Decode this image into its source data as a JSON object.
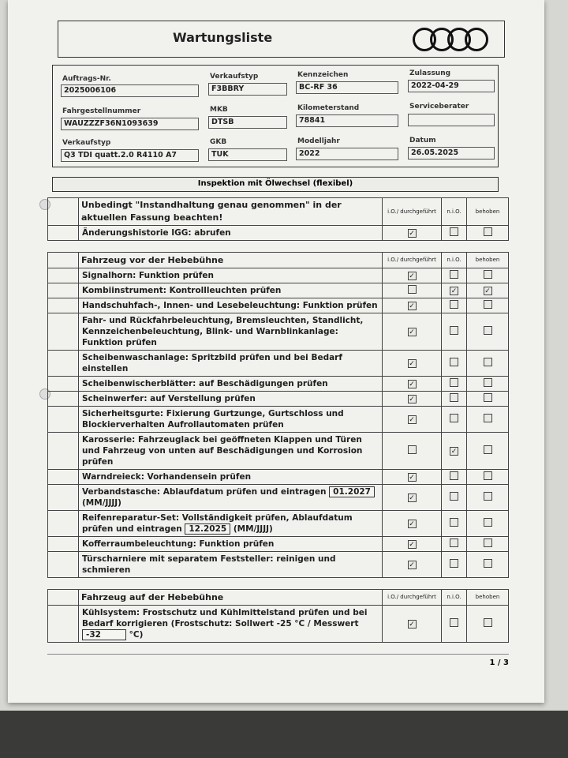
{
  "header": {
    "title": "Wartungsliste",
    "logo": "four-rings-logo"
  },
  "info": {
    "auftrag_label": "Auftrags-Nr.",
    "auftrag": "2025006106",
    "verkaufstyp_code_label": "Verkaufstyp",
    "verkaufstyp_code": "F3BBRY",
    "kennzeichen_label": "Kennzeichen",
    "kennzeichen": "BC-RF 36",
    "zulassung_label": "Zulassung",
    "zulassung": "2022-04-29",
    "fahrgestell_label": "Fahrgestellnummer",
    "fahrgestell": "WAUZZZF36N1093639",
    "mkb_label": "MKB",
    "mkb": "DTSB",
    "km_label": "Kilometerstand",
    "km": "78841",
    "berater_label": "Serviceberater",
    "berater": "",
    "verkaufstyp_label": "Verkaufstyp",
    "verkaufstyp": "Q3 TDI quatt.2.0 R4110 A7",
    "gkb_label": "GKB",
    "gkb": "TUK",
    "modelljahr_label": "Modelljahr",
    "modelljahr": "2022",
    "datum_label": "Datum",
    "datum": "26.05.2025"
  },
  "inspection_title": "Inspektion mit Ölwechsel (flexibel)",
  "columns": {
    "io": "i.O./ durchgeführt",
    "nio": "n.i.O.",
    "behoben": "behoben"
  },
  "sections": [
    {
      "title": "Unbedingt \"Instandhaltung genau genommen\" in der aktuellen Fassung beachten!",
      "rows": [
        {
          "text": "Änderungshistorie IGG: abrufen",
          "checks": [
            true,
            false,
            false
          ]
        }
      ]
    },
    {
      "title": "Fahrzeug vor der Hebebühne",
      "rows": [
        {
          "text": "Signalhorn: Funktion prüfen",
          "checks": [
            true,
            false,
            false
          ]
        },
        {
          "text": "Kombiinstrument: Kontrollleuchten prüfen",
          "checks": [
            false,
            true,
            true
          ]
        },
        {
          "text": "Handschuhfach-, Innen- und Lesebeleuchtung: Funktion prüfen",
          "checks": [
            true,
            false,
            false
          ]
        },
        {
          "text": "Fahr- und Rückfahrbeleuchtung, Bremsleuchten, Standlicht, Kennzeichenbeleuchtung, Blink- und Warnblinkanlage: Funktion prüfen",
          "checks": [
            true,
            false,
            false
          ]
        },
        {
          "text": "Scheibenwaschanlage: Spritzbild prüfen und bei Bedarf einstellen",
          "checks": [
            true,
            false,
            false
          ]
        },
        {
          "text": "Scheibenwischerblätter: auf Beschädigungen prüfen",
          "checks": [
            true,
            false,
            false
          ]
        },
        {
          "text": "Scheinwerfer: auf Verstellung prüfen",
          "checks": [
            true,
            false,
            false
          ]
        },
        {
          "text": "Sicherheitsgurte: Fixierung Gurtzunge, Gurtschloss und Blockierverhalten Aufrollautomaten prüfen",
          "checks": [
            true,
            false,
            false
          ]
        },
        {
          "text": "Karosserie: Fahrzeuglack bei geöffneten Klappen und Türen und Fahrzeug von unten auf Beschädigungen und Korrosion prüfen",
          "checks": [
            false,
            true,
            false
          ]
        },
        {
          "text": "Warndreieck: Vorhandensein prüfen",
          "checks": [
            true,
            false,
            false
          ]
        },
        {
          "text": "Verbandstasche: Ablaufdatum prüfen und eintragen",
          "value": "01.2027",
          "suffix": "(MM/JJJJ)",
          "checks": [
            true,
            false,
            false
          ]
        },
        {
          "text": "Reifenreparatur-Set: Vollständigkeit prüfen, Ablaufdatum prüfen und eintragen",
          "value": "12.2025",
          "suffix": "(MM/JJJJ)",
          "checks": [
            true,
            false,
            false
          ]
        },
        {
          "text": "Kofferraumbeleuchtung: Funktion prüfen",
          "checks": [
            true,
            false,
            false
          ]
        },
        {
          "text": "Türscharniere mit separatem Feststeller: reinigen und schmieren",
          "checks": [
            true,
            false,
            false
          ]
        }
      ]
    },
    {
      "title": "Fahrzeug auf der Hebebühne",
      "rows": [
        {
          "text": "Kühlsystem: Frostschutz und Kühlmittelstand prüfen und bei Bedarf korrigieren (Frostschutz: Sollwert -25 °C / Messwert",
          "value": "-32",
          "suffix": "°C)",
          "checks": [
            true,
            false,
            false
          ]
        }
      ]
    }
  ],
  "page": "1 / 3"
}
